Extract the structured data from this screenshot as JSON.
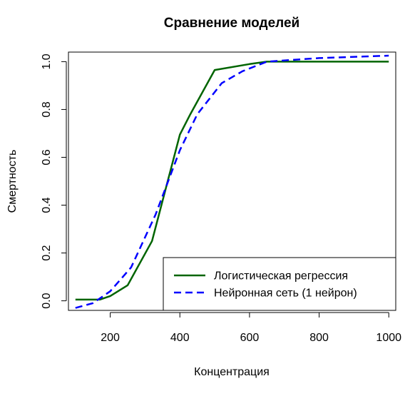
{
  "chart_data": {
    "type": "line",
    "title": "Сравнение моделей",
    "xlabel": "Концентрация",
    "ylabel": "Смертность",
    "xlim": [
      80,
      1020
    ],
    "ylim": [
      -0.04,
      1.04
    ],
    "x_ticks": [
      200,
      400,
      600,
      800,
      1000
    ],
    "x_tick_labels": [
      "200",
      "400",
      "600",
      "800",
      "1000"
    ],
    "y_ticks": [
      0.0,
      0.2,
      0.4,
      0.6,
      0.8,
      1.0
    ],
    "y_tick_labels": [
      "0.0",
      "0.2",
      "0.4",
      "0.6",
      "0.8",
      "1.0"
    ],
    "grid": false,
    "legend_position": "bottom-right",
    "series": [
      {
        "name": "Логистическая регрессия",
        "color": "#006400",
        "line_style": "solid",
        "x": [
          100,
          170,
          200,
          250,
          320,
          400,
          430,
          500,
          600,
          650,
          1000
        ],
        "y": [
          0.005,
          0.005,
          0.02,
          0.065,
          0.25,
          0.695,
          0.78,
          0.965,
          0.99,
          1.0,
          1.0
        ]
      },
      {
        "name": "Нейронная сеть (1 нейрон)",
        "color": "#0000FF",
        "line_style": "dashed",
        "x": [
          100,
          150,
          200,
          260,
          330,
          400,
          450,
          520,
          580,
          650,
          800,
          1000
        ],
        "y": [
          -0.03,
          -0.01,
          0.04,
          0.14,
          0.36,
          0.63,
          0.78,
          0.91,
          0.96,
          1.0,
          1.015,
          1.025
        ]
      }
    ]
  }
}
